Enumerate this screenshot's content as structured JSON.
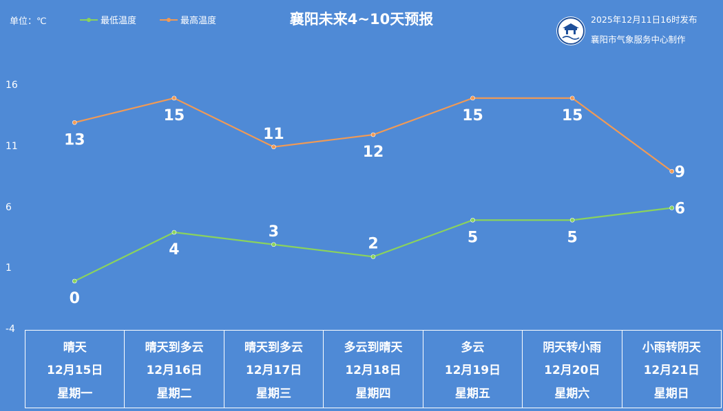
{
  "title": "襄阳未来4~10天预报",
  "unit_label": "单位：℃",
  "publish_info": "2025年12月11日16时发布",
  "producer": "襄阳市气象服务中心制作",
  "logo_icon": "xiangyang-weather-logo-icon",
  "colors": {
    "background": "#4f8ad6",
    "min_series": "#8bd35c",
    "max_series": "#f19a55",
    "text": "#ffffff"
  },
  "chart_data": {
    "type": "line",
    "title": "襄阳未来4~10天预报",
    "x": [
      "12月15日",
      "12月16日",
      "12月17日",
      "12月18日",
      "12月19日",
      "12月20日",
      "12月21日"
    ],
    "ylim": [
      -4,
      16
    ],
    "yticks": [
      -4,
      1,
      6,
      11,
      16
    ],
    "ylabel": "单位：℃",
    "grid": false,
    "legend": "top-left",
    "series": [
      {
        "name": "最低温度",
        "color": "#8bd35c",
        "values": [
          0,
          4,
          3,
          2,
          5,
          5,
          6
        ]
      },
      {
        "name": "最高温度",
        "color": "#f19a55",
        "values": [
          13,
          15,
          11,
          12,
          15,
          15,
          9
        ]
      }
    ]
  },
  "days": [
    {
      "weather": "晴天",
      "date": "12月15日",
      "weekday": "星期一"
    },
    {
      "weather": "晴天到多云",
      "date": "12月16日",
      "weekday": "星期二"
    },
    {
      "weather": "晴天到多云",
      "date": "12月17日",
      "weekday": "星期三"
    },
    {
      "weather": "多云到晴天",
      "date": "12月18日",
      "weekday": "星期四"
    },
    {
      "weather": "多云",
      "date": "12月19日",
      "weekday": "星期五"
    },
    {
      "weather": "阴天转小雨",
      "date": "12月20日",
      "weekday": "星期六"
    },
    {
      "weather": "小雨转阴天",
      "date": "12月21日",
      "weekday": "星期日"
    }
  ]
}
